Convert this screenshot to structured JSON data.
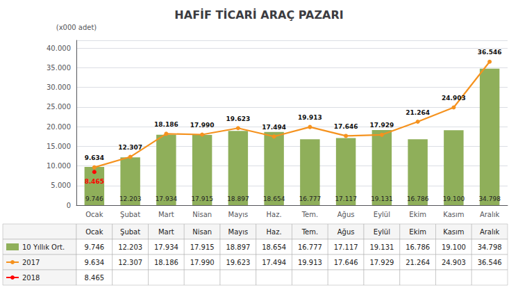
{
  "chart_data": {
    "type": "bar",
    "title": "HAFİF TİCARİ ARAÇ PAZARI",
    "ylabel": "(x000 adet)",
    "categories": [
      "Ocak",
      "Şubat",
      "Mart",
      "Nisan",
      "Mayıs",
      "Haz.",
      "Tem.",
      "Ağus",
      "Eylül",
      "Ekim",
      "Kasım",
      "Aralık"
    ],
    "series": [
      {
        "name": "10 Yıllık Ort.",
        "type": "bar",
        "color": "#8FAF5A",
        "values": [
          9746,
          12203,
          17934,
          17915,
          18897,
          18654,
          16777,
          17117,
          19131,
          16786,
          19100,
          34798
        ],
        "value_labels": [
          "9.746",
          "12.203",
          "17.934",
          "17.915",
          "18.897",
          "18.654",
          "16.777",
          "17.117",
          "19.131",
          "16.786",
          "19.100",
          "34.798"
        ]
      },
      {
        "name": "2017",
        "type": "line",
        "color": "#F5921E",
        "marker": "circle",
        "values": [
          9634,
          12307,
          18186,
          17990,
          19623,
          17494,
          19913,
          17646,
          17929,
          21264,
          24903,
          36546
        ],
        "value_labels": [
          "9.634",
          "12.307",
          "18.186",
          "17.990",
          "19.623",
          "17.494",
          "19.913",
          "17.646",
          "17.929",
          "21.264",
          "24.903",
          "36.546"
        ]
      },
      {
        "name": "2018",
        "type": "line",
        "color": "#FF0000",
        "marker": "circle",
        "values": [
          8465,
          null,
          null,
          null,
          null,
          null,
          null,
          null,
          null,
          null,
          null,
          null
        ],
        "value_labels": [
          "8.465",
          null,
          null,
          null,
          null,
          null,
          null,
          null,
          null,
          null,
          null,
          null
        ]
      }
    ],
    "ylim": [
      0,
      42000
    ],
    "yticks": [
      0,
      {
        "value": 5000,
        "label": "5.000"
      },
      {
        "value": 10000,
        "label": "10.000"
      },
      {
        "value": 15000,
        "label": "15.000"
      },
      {
        "value": 20000,
        "label": "20.000"
      },
      {
        "value": 25000,
        "label": "25.000"
      },
      {
        "value": 30000,
        "label": "30.000"
      },
      {
        "value": 35000,
        "label": "35.000"
      },
      {
        "value": 40000,
        "label": "40.000"
      }
    ],
    "grid": true,
    "data_labels": true
  }
}
